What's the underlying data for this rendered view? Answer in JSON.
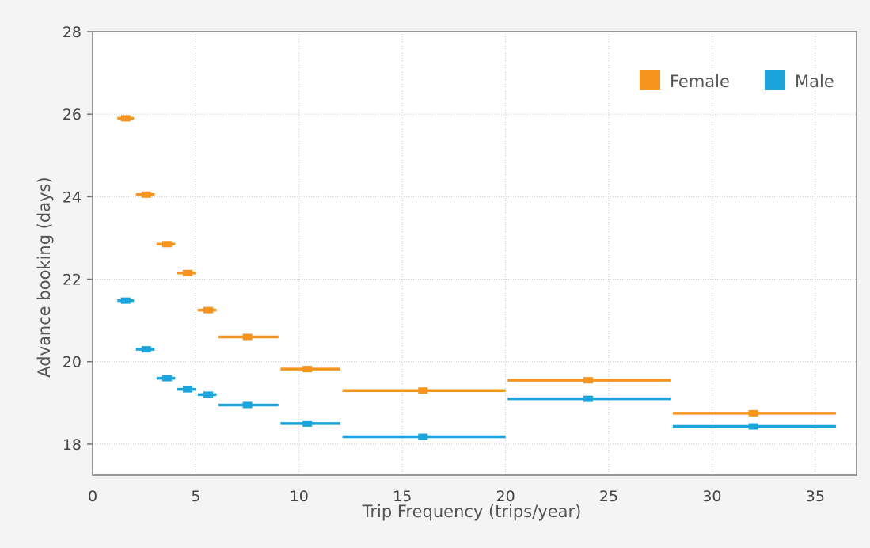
{
  "chart_data": {
    "type": "scatter",
    "xlabel": "Trip Frequency (trips/year)",
    "ylabel": "Advance booking (days)",
    "xlim": [
      0,
      37
    ],
    "ylim": [
      17.25,
      28
    ],
    "x_ticks": [
      "0",
      "5",
      "10",
      "15",
      "20",
      "25",
      "30",
      "35"
    ],
    "y_ticks": [
      "18",
      "20",
      "22",
      "24",
      "26",
      "28"
    ],
    "grid": true,
    "legend": {
      "placement": "top-right"
    },
    "series": [
      {
        "name": "Female",
        "color": "#f7941d",
        "points": [
          {
            "x": 1.6,
            "y": 25.9,
            "x_low": 1.2,
            "x_high": 2.0
          },
          {
            "x": 2.6,
            "y": 24.05,
            "x_low": 2.1,
            "x_high": 3.0
          },
          {
            "x": 3.6,
            "y": 22.85,
            "x_low": 3.1,
            "x_high": 4.0
          },
          {
            "x": 4.6,
            "y": 22.15,
            "x_low": 4.1,
            "x_high": 5.0
          },
          {
            "x": 5.6,
            "y": 21.25,
            "x_low": 5.1,
            "x_high": 6.0
          },
          {
            "x": 7.5,
            "y": 20.6,
            "x_low": 6.1,
            "x_high": 9.0
          },
          {
            "x": 10.4,
            "y": 19.82,
            "x_low": 9.1,
            "x_high": 12.0
          },
          {
            "x": 16.0,
            "y": 19.3,
            "x_low": 12.1,
            "x_high": 20.0
          },
          {
            "x": 24.0,
            "y": 19.55,
            "x_low": 20.1,
            "x_high": 28.0
          },
          {
            "x": 32.0,
            "y": 18.75,
            "x_low": 28.1,
            "x_high": 36.0
          }
        ]
      },
      {
        "name": "Male",
        "color": "#1ba5dc",
        "points": [
          {
            "x": 1.6,
            "y": 21.48,
            "x_low": 1.2,
            "x_high": 2.0
          },
          {
            "x": 2.6,
            "y": 20.3,
            "x_low": 2.1,
            "x_high": 3.0
          },
          {
            "x": 3.6,
            "y": 19.6,
            "x_low": 3.1,
            "x_high": 4.0
          },
          {
            "x": 4.6,
            "y": 19.33,
            "x_low": 4.1,
            "x_high": 5.0
          },
          {
            "x": 5.6,
            "y": 19.2,
            "x_low": 5.1,
            "x_high": 6.0
          },
          {
            "x": 7.5,
            "y": 18.95,
            "x_low": 6.1,
            "x_high": 9.0
          },
          {
            "x": 10.4,
            "y": 18.5,
            "x_low": 9.1,
            "x_high": 12.0
          },
          {
            "x": 16.0,
            "y": 18.18,
            "x_low": 12.1,
            "x_high": 20.0
          },
          {
            "x": 24.0,
            "y": 19.1,
            "x_low": 20.1,
            "x_high": 28.0
          },
          {
            "x": 32.0,
            "y": 18.43,
            "x_low": 28.1,
            "x_high": 36.0
          }
        ]
      }
    ]
  }
}
